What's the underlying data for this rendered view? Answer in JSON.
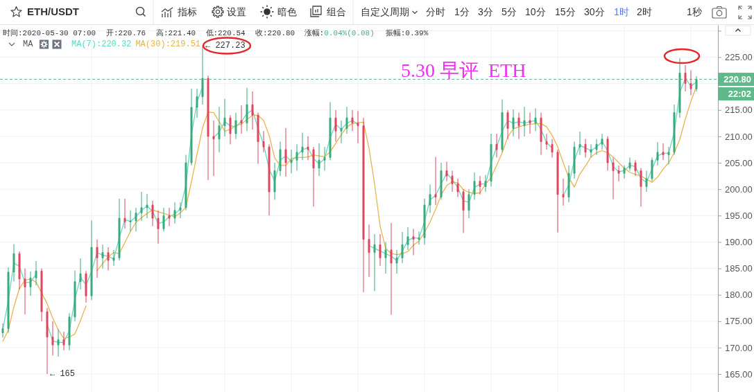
{
  "chart_data": {
    "type": "candlestick",
    "title": "5.30 早评  ETH",
    "categories": [
      null,
      null,
      null,
      null,
      null,
      null,
      null,
      null,
      null,
      null,
      null,
      null,
      null,
      null,
      null,
      null,
      null,
      null,
      null,
      null,
      null,
      null,
      null,
      null,
      null,
      null,
      null,
      null,
      null,
      null,
      null,
      null,
      null,
      null,
      null,
      null,
      null,
      null,
      null,
      null,
      null,
      null,
      null,
      null,
      null,
      null,
      null,
      null,
      null,
      null,
      null,
      null,
      null,
      null,
      null,
      null,
      null,
      null,
      null,
      null,
      null,
      null,
      null,
      null,
      null,
      null,
      null,
      null,
      null,
      null,
      null,
      null,
      null,
      null,
      null,
      null,
      null,
      null,
      null,
      null,
      null,
      null,
      null,
      null,
      null,
      null,
      null,
      null,
      null,
      null,
      null,
      null,
      null,
      null,
      null,
      null,
      null,
      null,
      null,
      null,
      null,
      null,
      null,
      null,
      null,
      null,
      null,
      null,
      null,
      null,
      null,
      null,
      null,
      null,
      null,
      null,
      null,
      null,
      null,
      null,
      null,
      null,
      null,
      null,
      null,
      null
    ],
    "ohlc": [
      [
        172.8,
        174.6,
        171.9,
        173.6
      ],
      [
        173.6,
        185.2,
        172.8,
        184.3
      ],
      [
        184.3,
        189.6,
        182.5,
        187.8
      ],
      [
        187.8,
        188.2,
        181.0,
        183.0
      ],
      [
        183.0,
        185.0,
        176.3,
        181.5
      ],
      [
        181.5,
        184.4,
        179.8,
        183.2
      ],
      [
        183.2,
        186.4,
        181.8,
        184.5
      ],
      [
        184.5,
        185.0,
        175.0,
        176.8
      ],
      [
        176.8,
        177.5,
        165,
        172.0
      ],
      [
        172.0,
        175.0,
        168.5,
        170.5
      ],
      [
        170.5,
        173.5,
        168.3,
        171.5
      ],
      [
        171.5,
        173.0,
        169.5,
        170.5
      ],
      [
        170.5,
        176.5,
        169.5,
        175.8
      ],
      [
        175.8,
        184.6,
        175.0,
        182.5
      ],
      [
        182.5,
        186.9,
        181.0,
        184.0
      ],
      [
        184.0,
        184.5,
        178.5,
        179.8
      ],
      [
        179.8,
        194.1,
        179.0,
        189.0
      ],
      [
        189.0,
        190.5,
        183.2,
        187.0
      ],
      [
        187.0,
        189.5,
        185.0,
        188.0
      ],
      [
        188.0,
        189.0,
        184.6,
        186.5
      ],
      [
        186.5,
        188.5,
        185.5,
        187.0
      ],
      [
        187.0,
        198.2,
        186.5,
        194.5
      ],
      [
        194.5,
        198.2,
        192.5,
        193.8
      ],
      [
        193.8,
        196.0,
        192.0,
        194.0
      ],
      [
        194.0,
        196.5,
        192.0,
        195.5
      ],
      [
        195.5,
        199.5,
        194.0,
        196.5
      ],
      [
        196.5,
        199.1,
        194.5,
        197.0
      ],
      [
        197.0,
        197.8,
        193.0,
        194.5
      ],
      [
        194.5,
        196.0,
        189.7,
        192.5
      ],
      [
        192.5,
        196.5,
        192.0,
        195.0
      ],
      [
        195.0,
        196.5,
        193.0,
        194.5
      ],
      [
        194.5,
        197.5,
        193.5,
        196.0
      ],
      [
        196.0,
        197.5,
        194.5,
        196.5
      ],
      [
        196.5,
        206.5,
        196.0,
        205.0
      ],
      [
        205.0,
        219.0,
        204.5,
        215.5
      ],
      [
        215.5,
        219.0,
        213.5,
        217.5
      ],
      [
        217.5,
        227.23,
        216.0,
        221.0
      ],
      [
        221.0,
        221.5,
        201.7,
        210.0
      ],
      [
        210.0,
        213.0,
        202.5,
        209.5
      ],
      [
        209.5,
        215.6,
        207.0,
        212.0
      ],
      [
        212.0,
        217.1,
        210.0,
        213.5
      ],
      [
        213.5,
        214.0,
        208.5,
        210.5
      ],
      [
        210.5,
        214.5,
        209.5,
        213.0
      ],
      [
        213.0,
        215.9,
        210.5,
        212.5
      ],
      [
        212.5,
        219.2,
        211.0,
        216.0
      ],
      [
        216.0,
        218.5,
        211.3,
        214.0
      ],
      [
        214.0,
        214.5,
        204.8,
        209.0
      ],
      [
        209.0,
        211.0,
        207.0,
        208.0
      ],
      [
        208.0,
        208.5,
        195.0,
        199.5
      ],
      [
        199.5,
        205.0,
        198.0,
        203.5
      ],
      [
        203.5,
        209.0,
        202.5,
        207.5
      ],
      [
        207.5,
        211.6,
        202.4,
        205.0
      ],
      [
        205.0,
        207.5,
        203.0,
        205.5
      ],
      [
        205.5,
        208.5,
        203.5,
        207.0
      ],
      [
        207.0,
        210.7,
        205.5,
        208.0
      ],
      [
        208.0,
        210.0,
        205.5,
        207.5
      ],
      [
        207.5,
        208.0,
        196.7,
        204.0
      ],
      [
        204.0,
        208.7,
        202.5,
        205.5
      ],
      [
        205.5,
        208.0,
        203.5,
        206.0
      ],
      [
        206.0,
        216.5,
        205.5,
        213.5
      ],
      [
        213.5,
        215.0,
        209.0,
        211.0
      ],
      [
        211.0,
        213.0,
        208.7,
        211.5
      ],
      [
        211.5,
        215.6,
        210.5,
        213.5
      ],
      [
        213.5,
        215.0,
        211.0,
        212.5
      ],
      [
        212.5,
        214.8,
        208.7,
        212.0
      ],
      [
        212.0,
        213.5,
        180.5,
        190.5
      ],
      [
        190.5,
        193.3,
        183.4,
        188.0
      ],
      [
        188.0,
        191.5,
        180.7,
        189.5
      ],
      [
        189.5,
        191.5,
        185.5,
        187.0
      ],
      [
        187.0,
        190.0,
        184.0,
        188.5
      ],
      [
        188.5,
        193.6,
        176.2,
        186.0
      ],
      [
        186.0,
        188.5,
        184.0,
        187.0
      ],
      [
        187.0,
        191.9,
        186.0,
        189.5
      ],
      [
        189.5,
        192.8,
        188.5,
        191.0
      ],
      [
        191.0,
        192.5,
        187.5,
        190.5
      ],
      [
        190.5,
        192.0,
        189.5,
        190.8
      ],
      [
        190.8,
        198.2,
        189.5,
        197.0
      ],
      [
        197.0,
        200.9,
        195.5,
        199.0
      ],
      [
        199.0,
        206.1,
        197.0,
        198.5
      ],
      [
        198.5,
        205.0,
        198.0,
        203.5
      ],
      [
        203.5,
        205.2,
        201.5,
        202.5
      ],
      [
        202.5,
        203.5,
        199.5,
        201.0
      ],
      [
        201.0,
        202.0,
        198.5,
        199.5
      ],
      [
        199.5,
        200.0,
        191.7,
        196.0
      ],
      [
        196.0,
        200.0,
        194.5,
        199.0
      ],
      [
        199.0,
        203.2,
        198.0,
        201.5
      ],
      [
        201.5,
        202.5,
        199.0,
        200.5
      ],
      [
        200.5,
        202.7,
        199.5,
        201.5
      ],
      [
        201.5,
        210.5,
        200.5,
        208.5
      ],
      [
        208.5,
        210.5,
        206.0,
        207.5
      ],
      [
        207.5,
        217.0,
        207.0,
        214.5
      ],
      [
        214.5,
        215.0,
        209.5,
        211.5
      ],
      [
        211.5,
        215.1,
        210.0,
        213.5
      ],
      [
        213.5,
        214.5,
        209.5,
        212.0
      ],
      [
        212.0,
        215.6,
        210.0,
        213.0
      ],
      [
        213.0,
        214.5,
        210.5,
        212.5
      ],
      [
        212.5,
        215.3,
        211.0,
        213.5
      ],
      [
        213.5,
        214.5,
        206.5,
        209.0
      ],
      [
        209.0,
        210.5,
        207.5,
        208.5
      ],
      [
        208.5,
        209.5,
        206.0,
        207.0
      ],
      [
        207.0,
        207.5,
        191.8,
        199.0
      ],
      [
        199.0,
        202.0,
        196.9,
        198.5
      ],
      [
        198.5,
        204.5,
        197.5,
        203.0
      ],
      [
        203.0,
        209.0,
        202.0,
        208.0
      ],
      [
        208.0,
        210.9,
        206.5,
        208.5
      ],
      [
        208.5,
        209.5,
        206.0,
        207.0
      ],
      [
        207.0,
        208.5,
        206.0,
        207.5
      ],
      [
        207.5,
        209.5,
        206.5,
        208.5
      ],
      [
        208.5,
        210.5,
        207.5,
        209.5
      ],
      [
        209.5,
        210.0,
        203.5,
        205.0
      ],
      [
        205.0,
        206.0,
        198.1,
        203.5
      ],
      [
        203.5,
        204.5,
        201.5,
        203.0
      ],
      [
        203.0,
        204.5,
        202.0,
        204.0
      ],
      [
        204.0,
        206.0,
        203.5,
        205.0
      ],
      [
        205.0,
        205.5,
        202.5,
        203.5
      ],
      [
        203.5,
        204.0,
        196.7,
        200.5
      ],
      [
        200.5,
        203.5,
        199.5,
        202.0
      ],
      [
        202.0,
        206.0,
        201.5,
        205.5
      ],
      [
        205.5,
        208.9,
        204.5,
        207.0
      ],
      [
        207.0,
        208.7,
        205.5,
        206.5
      ],
      [
        206.5,
        208.0,
        204.7,
        207.0
      ],
      [
        207.0,
        216.0,
        206.5,
        214.5
      ],
      [
        214.5,
        224.8,
        213.5,
        222.0
      ],
      [
        222.0,
        223.5,
        218.5,
        220.0
      ],
      [
        220.0,
        222.5,
        217.8,
        219.0
      ],
      [
        219.0,
        221.4,
        218.5,
        220.8
      ]
    ],
    "colors": [
      "#3aa97c",
      "#3aa97c",
      "#3aa97c",
      "#e2455b",
      "#e2455b",
      "#3aa97c",
      "#3aa97c",
      "#e2455b",
      "#e2455b",
      "#e2455b",
      "#3aa97c",
      "#e2455b",
      "#3aa97c",
      "#3aa97c",
      "#3aa97c",
      "#e2455b",
      "#3aa97c",
      "#e2455b",
      "#3aa97c",
      "#e2455b",
      "#3aa97c",
      "#3aa97c",
      "#e2455b",
      "#3aa97c",
      "#3aa97c",
      "#3aa97c",
      "#3aa97c",
      "#e2455b",
      "#e2455b",
      "#3aa97c",
      "#e2455b",
      "#3aa97c",
      "#3aa97c",
      "#3aa97c",
      "#3aa97c",
      "#3aa97c",
      "#3aa97c",
      "#e2455b",
      "#e2455b",
      "#3aa97c",
      "#3aa97c",
      "#e2455b",
      "#3aa97c",
      "#e2455b",
      "#3aa97c",
      "#e2455b",
      "#e2455b",
      "#e2455b",
      "#e2455b",
      "#3aa97c",
      "#3aa97c",
      "#e2455b",
      "#3aa97c",
      "#3aa97c",
      "#3aa97c",
      "#e2455b",
      "#e2455b",
      "#3aa97c",
      "#3aa97c",
      "#3aa97c",
      "#e2455b",
      "#3aa97c",
      "#3aa97c",
      "#e2455b",
      "#e2455b",
      "#e2455b",
      "#e2455b",
      "#3aa97c",
      "#e2455b",
      "#3aa97c",
      "#e2455b",
      "#3aa97c",
      "#3aa97c",
      "#3aa97c",
      "#e2455b",
      "#3aa97c",
      "#3aa97c",
      "#3aa97c",
      "#e2455b",
      "#3aa97c",
      "#e2455b",
      "#e2455b",
      "#e2455b",
      "#e2455b",
      "#3aa97c",
      "#3aa97c",
      "#e2455b",
      "#3aa97c",
      "#3aa97c",
      "#e2455b",
      "#3aa97c",
      "#e2455b",
      "#3aa97c",
      "#e2455b",
      "#3aa97c",
      "#e2455b",
      "#3aa97c",
      "#e2455b",
      "#e2455b",
      "#e2455b",
      "#e2455b",
      "#e2455b",
      "#3aa97c",
      "#3aa97c",
      "#3aa97c",
      "#e2455b",
      "#3aa97c",
      "#3aa97c",
      "#3aa97c",
      "#e2455b",
      "#e2455b",
      "#e2455b",
      "#3aa97c",
      "#3aa97c",
      "#e2455b",
      "#e2455b",
      "#3aa97c",
      "#3aa97c",
      "#3aa97c",
      "#e2455b",
      "#3aa97c",
      "#3aa97c",
      "#3aa97c",
      "#e2455b",
      "#e2455b",
      "#3aa97c"
    ],
    "series": [
      {
        "type": "line",
        "name": "MA(7):220.32",
        "color": "#62d8c6",
        "values": [
          173.3,
          179.0,
          186.0,
          185.4,
          182.3,
          182.4,
          183.9,
          null,
          174.4,
          171.3,
          171.0,
          171.0,
          173.2,
          179.2,
          183.3,
          181.9,
          184.4,
          188.0,
          187.5,
          187.3,
          186.8,
          190.8,
          194.2,
          193.9,
          194.8,
          196.0,
          196.8,
          195.8,
          193.5,
          193.8,
          194.8,
          195.3,
          196.3,
          200.8,
          210.3,
          216.5,
          219.3,
          null,
          209.8,
          210.8,
          212.8,
          212.0,
          211.8,
          212.8,
          214.3,
          215.0,
          211.5,
          208.5,
          203.8,
          201.5,
          205.5,
          206.3,
          205.3,
          206.3,
          207.5,
          207.8,
          205.8,
          204.8,
          205.8,
          209.8,
          212.3,
          211.3,
          212.5,
          213.0,
          212.3,
          null,
          189.3,
          188.8,
          188.3,
          187.8,
          187.3,
          186.5,
          188.3,
          190.3,
          190.8,
          190.7,
          193.9,
          198.0,
          198.8,
          201.0,
          203.0,
          201.8,
          200.3,
          197.8,
          197.5,
          200.3,
          201.0,
          201.0,
          205.0,
          208.0,
          211.0,
          213.0,
          212.5,
          212.8,
          212.5,
          212.8,
          213.0,
          211.3,
          208.8,
          207.8,
          null,
          198.8,
          200.8,
          205.5,
          208.3,
          207.8,
          207.3,
          208.0,
          209.0,
          207.3,
          204.3,
          203.3,
          203.5,
          204.5,
          204.3,
          202.0,
          201.3,
          203.8,
          206.3,
          206.8,
          206.8,
          210.8,
          218.3,
          221.0,
          219.5,
          220.3
        ]
      },
      {
        "type": "line",
        "name": "MA(30):219.51",
        "color": "#e6b54f",
        "values": [
          171.2,
          173.3,
          177.7,
          181.2,
          182.8,
          183.0,
          182.4,
          180.4,
          178.3,
          175.6,
          173.4,
          171.7,
          172.0,
          172.6,
          175.1,
          177.9,
          null,
          184.6,
          185.9,
          187.2,
          188.0,
          187.8,
          189.9,
          192.0,
          193.7,
          194.6,
          195.4,
          196.1,
          195.7,
          195.4,
          195.1,
          194.8,
          195.5,
          196.6,
          201.4,
          206.6,
          211.6,
          214.6,
          214.5,
          212.8,
          211.0,
          211.3,
          212.1,
          212.3,
          213.2,
          214.0,
          214.0,
          213.0,
          210.2,
          205.9,
          204.5,
          204.5,
          205.8,
          206.0,
          206.0,
          206.1,
          206.5,
          206.3,
          206.1,
          207.1,
          208.7,
          210.3,
          211.8,
          212.4,
          212.6,
          212.7,
          207.7,
          201.0,
          193.0,
          188.8,
          187.8,
          187.6,
          187.8,
          188.2,
          189.4,
          190.2,
          191.8,
          193.8,
          196.2,
          198.9,
          200.7,
          201.4,
          201.2,
          199.9,
          199.4,
          199.2,
          199.3,
          201.0,
          202.2,
          204.5,
          206.9,
          209.9,
          211.4,
          211.8,
          212.1,
          212.3,
          212.4,
          212.4,
          211.8,
          210.2,
          208.0,
          205.0,
          202.2,
          200.4,
          202.9,
          204.4,
          206.1,
          206.9,
          207.3,
          206.9,
          206.1,
          205.0,
          204.0,
          203.2,
          202.8,
          202.5,
          201.9,
          201.3,
          202.3,
          203.8,
          205.0,
          206.9,
          209.4,
          213.3,
          216.6,
          219.5
        ]
      }
    ],
    "ylim": [
      161.6,
      231.1
    ],
    "yticks": [
      {
        "value": 165,
        "label": "165.00"
      },
      {
        "value": 170,
        "label": "170.00"
      },
      {
        "value": 175,
        "label": "175.00"
      },
      {
        "value": 180,
        "label": "180.00"
      },
      {
        "value": 185,
        "label": "185.00"
      },
      {
        "value": 190,
        "label": "190.00"
      },
      {
        "value": 195,
        "label": "195.00"
      },
      {
        "value": 200,
        "label": "200.00"
      },
      {
        "value": 205,
        "label": "205.00"
      },
      {
        "value": 210,
        "label": "210.00"
      },
      {
        "value": 215,
        "label": "215.00"
      },
      {
        "value": 220,
        "label": null
      },
      {
        "value": 225,
        "label": "225.00"
      },
      {
        "value": 230,
        "label": null
      }
    ],
    "grid": true,
    "legend": "top left",
    "legend_title": "MA",
    "ref_lines": [
      {
        "axis": "y",
        "value": 220.8,
        "color": "#5fb98b",
        "line_style": "dashed"
      }
    ],
    "annotations": [
      "ETH/USDT",
      "指标",
      "设置",
      "暗色",
      "组合",
      "自定义周期",
      "分时",
      "1分",
      "3分",
      "5分",
      "10分",
      "15分",
      "30分",
      "1时",
      "2时",
      "1秒",
      "时间:2020-05-30 07:00",
      "开:220.76",
      "高:221.40",
      "低:220.54",
      "收:220.80",
      "涨幅:0.04%(0.08)",
      "振幅:0.39%",
      "220.80",
      "22:02",
      "← 227.23",
      "← 165"
    ]
  }
}
